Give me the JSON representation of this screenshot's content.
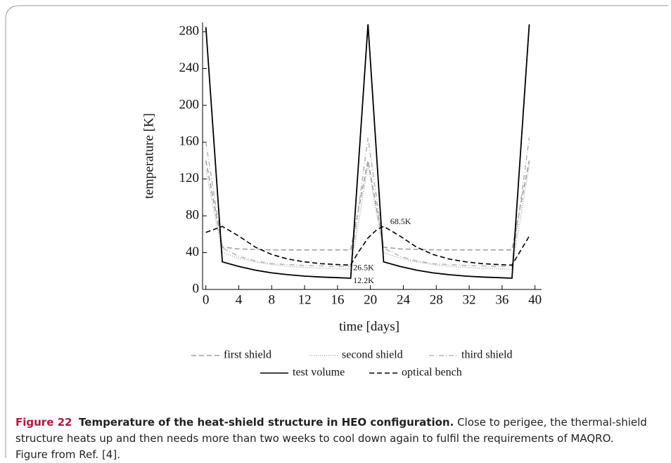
{
  "chart_data": {
    "type": "line",
    "xlabel": "time [days]",
    "ylabel": "temperature [K]",
    "xlim": [
      -0.4,
      40.8
    ],
    "ylim": [
      0,
      290
    ],
    "xticks": [
      0,
      4,
      8,
      12,
      16,
      20,
      24,
      28,
      32,
      36,
      40
    ],
    "yticks": [
      0,
      40,
      80,
      120,
      160,
      200,
      240,
      280
    ],
    "series": [
      {
        "name": "first shield",
        "color": "#a0a0a0",
        "dash": "7 4",
        "x": [
          0,
          2,
          4,
          8,
          12,
          17.6,
          19.7,
          21.6,
          23.6,
          28,
          32,
          37.2,
          39.3
        ],
        "values": [
          140,
          46,
          44,
          43,
          43,
          43,
          140,
          46,
          44,
          43,
          43,
          43,
          140
        ]
      },
      {
        "name": "second shield",
        "color": "#a8a8a8",
        "dash": "1 2",
        "x": [
          0,
          2,
          4,
          6,
          8,
          10,
          12,
          14,
          16,
          17.6,
          19.7,
          21.6,
          23.6,
          25.6,
          27.6,
          29.6,
          31.6,
          33.6,
          35.6,
          37.2,
          39.3
        ],
        "values": [
          130,
          40,
          34,
          30,
          27,
          25,
          24,
          23,
          22.5,
          22,
          135,
          40,
          34,
          30,
          27,
          25,
          24,
          23,
          22.5,
          22,
          135
        ]
      },
      {
        "name": "third shield",
        "color": "#b8b8b8",
        "dash": "7 3 1 3",
        "x": [
          0,
          2,
          4,
          6,
          8,
          10,
          12,
          14,
          16,
          17.6,
          19.7,
          21.6,
          23.6,
          25.6,
          27.6,
          29.6,
          31.6,
          33.6,
          35.6,
          37.2,
          39.3
        ],
        "values": [
          160,
          45,
          36,
          31,
          28,
          27,
          26,
          25.5,
          25,
          25,
          165,
          45,
          36,
          31,
          28,
          27,
          26,
          25.5,
          25,
          25,
          165
        ]
      },
      {
        "name": "test volume",
        "color": "#000000",
        "dash": "none",
        "x": [
          0,
          2,
          4,
          6,
          8,
          10,
          12,
          14,
          16,
          17.6,
          19.7,
          21.6,
          23.6,
          25.6,
          27.6,
          29.6,
          31.6,
          33.6,
          35.6,
          37.2,
          39.3
        ],
        "values": [
          285,
          30,
          25,
          21,
          18,
          16,
          14.5,
          13.5,
          12.8,
          12.2,
          288,
          30,
          25,
          21,
          18,
          16,
          14.5,
          13.5,
          12.8,
          12.2,
          288
        ]
      },
      {
        "name": "optical bench",
        "color": "#000000",
        "dash": "7 4",
        "x": [
          0,
          2,
          4,
          6,
          8,
          10,
          12,
          14,
          16,
          17.6,
          18.5,
          19.7,
          20.8,
          21.6,
          23.6,
          25.6,
          27.6,
          29.6,
          31.6,
          33.6,
          35.6,
          37.2,
          39.3
        ],
        "values": [
          62,
          68.5,
          58,
          46,
          38,
          33,
          30,
          28,
          27,
          26.5,
          40,
          56,
          65,
          68.5,
          58,
          46,
          38,
          33,
          30,
          28,
          27,
          26.5,
          58
        ]
      }
    ],
    "annotations": [
      {
        "text": "68.5K",
        "x": 22.4,
        "y": 73
      },
      {
        "text": "26.5K",
        "x": 17.9,
        "y": 23
      },
      {
        "text": "12.2K",
        "x": 17.9,
        "y": 9
      }
    ]
  },
  "caption": {
    "label": "Figure 22",
    "title": "Temperature of the heat-shield structure in HEO configuration.",
    "text": "Close to perigee, the thermal-shield structure heats up and then needs more than two weeks to cool down again to fulfil the requirements of MAQRO. Figure from Ref. [4]."
  }
}
